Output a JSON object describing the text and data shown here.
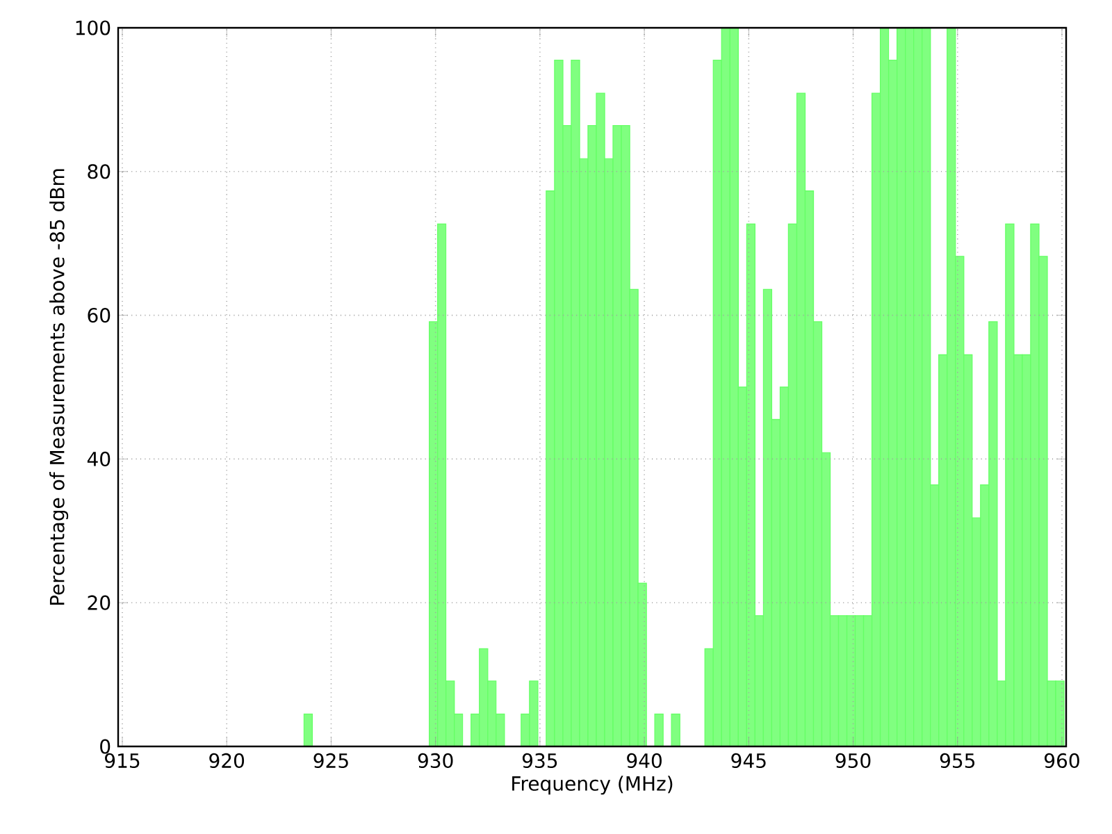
{
  "chart_data": {
    "type": "histogram",
    "xlabel": "Frequency (MHz)",
    "ylabel": "Percentage of Measurements above -85 dBm",
    "bins": [
      923.7,
      924.1,
      924.5,
      924.9,
      925.3,
      925.7,
      926.1,
      926.5,
      926.9,
      927.3,
      927.7,
      928.1,
      928.5,
      928.9,
      929.3,
      929.7,
      930.1,
      930.5,
      930.9,
      931.3,
      931.7,
      932.1,
      932.5,
      932.9,
      933.3,
      933.7,
      934.1,
      934.5,
      934.9,
      935.3,
      935.7,
      936.1,
      936.5,
      936.9,
      937.3,
      937.7,
      938.1,
      938.5,
      938.9,
      939.3,
      939.7,
      940.1,
      940.5,
      940.9,
      941.3,
      941.7,
      942.1,
      942.5,
      942.9,
      943.3,
      943.7,
      944.1,
      944.5,
      944.9,
      945.3,
      945.7,
      946.1,
      946.5,
      946.9,
      947.3,
      947.7,
      948.1,
      948.5,
      948.9,
      949.3,
      949.7,
      950.1,
      950.5,
      950.9,
      951.3,
      951.7,
      952.1,
      952.5,
      952.9,
      953.3,
      953.7,
      954.1,
      954.5,
      954.9,
      955.3,
      955.7,
      956.1,
      956.5,
      956.9,
      957.3,
      957.7,
      958.1,
      958.5,
      958.9,
      959.3,
      959.7,
      960.1
    ],
    "values": [
      4.5,
      0,
      0,
      0,
      0,
      0,
      0,
      0,
      0,
      0,
      0,
      0,
      0,
      0,
      0,
      59.1,
      72.7,
      9.1,
      4.5,
      0,
      4.5,
      13.6,
      9.1,
      4.5,
      0,
      0,
      4.5,
      9.1,
      0,
      77.3,
      95.5,
      86.4,
      95.5,
      81.8,
      86.4,
      90.9,
      81.8,
      86.4,
      86.4,
      63.6,
      22.7,
      0,
      4.5,
      0,
      4.5,
      0,
      0,
      0,
      13.6,
      95.5,
      100,
      100,
      50,
      72.7,
      18.2,
      63.6,
      45.5,
      50,
      72.7,
      90.9,
      77.3,
      59.1,
      40.9,
      18.2,
      18.2,
      18.2,
      18.2,
      18.2,
      90.9,
      100,
      95.5,
      100,
      100,
      100,
      100,
      36.4,
      54.5,
      100,
      68.2,
      54.5,
      31.8,
      36.4,
      59.1,
      9.1,
      72.7,
      54.5,
      54.5,
      72.7,
      68.2,
      9.1,
      9.1
    ],
    "color": "#80ff80",
    "xlim": [
      914.8,
      960.2
    ],
    "ylim": [
      0,
      100
    ],
    "xticks": [
      915,
      920,
      925,
      930,
      935,
      940,
      945,
      950,
      955,
      960
    ],
    "yticks": [
      0,
      20,
      40,
      60,
      80,
      100
    ],
    "grid": true
  }
}
